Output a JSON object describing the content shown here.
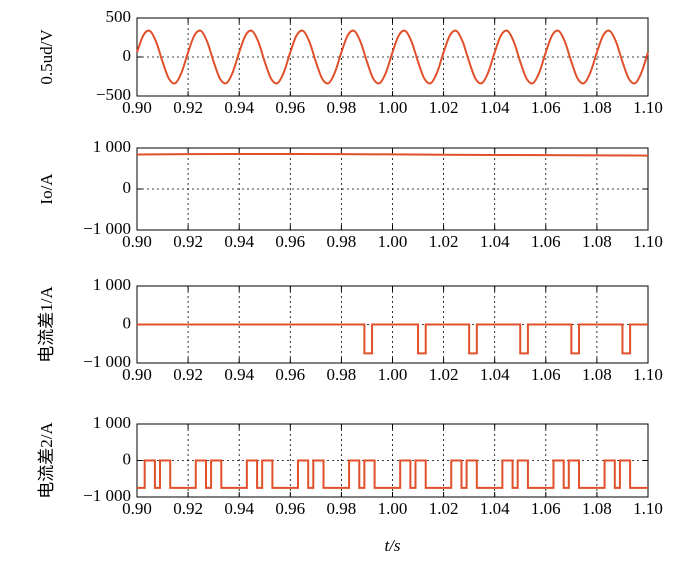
{
  "chart_data": [
    {
      "type": "line",
      "ylabel": "0.5ud/V",
      "color": "#e0502a",
      "grid": true,
      "xlim": [
        0.9,
        1.1
      ],
      "ylim": [
        -500,
        500
      ],
      "xticks": [
        {
          "value": 0.9,
          "label": "0.90"
        },
        {
          "value": 0.92,
          "label": "0.92"
        },
        {
          "value": 0.94,
          "label": "0.94"
        },
        {
          "value": 0.96,
          "label": "0.96"
        },
        {
          "value": 0.98,
          "label": "0.98"
        },
        {
          "value": 1,
          "label": "1.00"
        },
        {
          "value": 1.02,
          "label": "1.02"
        },
        {
          "value": 1.04,
          "label": "1.04"
        },
        {
          "value": 1.06,
          "label": "1.06"
        },
        {
          "value": 1.08,
          "label": "1.08"
        },
        {
          "value": 1.1,
          "label": "1.10"
        }
      ],
      "yticks": [
        500,
        0,
        {
          "value": -500,
          "label": "−500"
        }
      ],
      "x": [
        0.9,
        0.9025,
        0.905,
        0.9075,
        0.91,
        0.9125,
        0.915,
        0.9175,
        0.92,
        0.9225,
        0.925,
        0.9275,
        0.93,
        0.9325,
        0.935,
        0.9375,
        0.94,
        0.9425,
        0.945,
        0.9475,
        0.95,
        0.9525,
        0.955,
        0.9575,
        0.96,
        0.9625,
        0.965,
        0.9675,
        0.97,
        0.9725,
        0.975,
        0.9775,
        0.98,
        0.9825,
        0.985,
        0.9875,
        0.99,
        0.9925,
        0.995,
        0.9975,
        1.0,
        1.0025,
        1.005,
        1.0075,
        1.01,
        1.0125,
        1.015,
        1.0175,
        1.02,
        1.0225,
        1.025,
        1.0275,
        1.03,
        1.0325,
        1.035,
        1.0375,
        1.04,
        1.0425,
        1.045,
        1.0475,
        1.05,
        1.0525,
        1.055,
        1.0575,
        1.06,
        1.0625,
        1.065,
        1.0675,
        1.07,
        1.0725,
        1.075,
        1.0775,
        1.08,
        1.0825,
        1.085,
        1.0875,
        1.09,
        1.0925,
        1.095,
        1.0975,
        1.1
      ],
      "values": [
        61,
        279,
        335,
        194,
        -61,
        -279,
        -335,
        -194,
        61,
        279,
        335,
        194,
        -61,
        -279,
        -335,
        -194,
        61,
        279,
        335,
        194,
        -61,
        -279,
        -335,
        -194,
        61,
        279,
        335,
        194,
        -61,
        -279,
        -335,
        -194,
        61,
        279,
        335,
        194,
        -61,
        -279,
        -335,
        -194,
        61,
        279,
        335,
        194,
        -61,
        -279,
        -335,
        -194,
        61,
        279,
        335,
        194,
        -61,
        -279,
        -335,
        -194,
        61,
        279,
        335,
        194,
        -61,
        -279,
        -335,
        -194,
        61,
        279,
        335,
        194,
        -61,
        -279,
        -335,
        -194,
        61,
        279,
        335,
        194,
        -61,
        -279,
        -335,
        -194,
        61
      ]
    },
    {
      "type": "line",
      "ylabel": "Io/A",
      "color": "#e0502a",
      "grid": true,
      "xlim": [
        0.9,
        1.1
      ],
      "ylim": [
        -1000,
        1000
      ],
      "xticks": [
        {
          "value": 0.9,
          "label": "0.90"
        },
        {
          "value": 0.92,
          "label": "0.92"
        },
        {
          "value": 0.94,
          "label": "0.94"
        },
        {
          "value": 0.96,
          "label": "0.96"
        },
        {
          "value": 0.98,
          "label": "0.98"
        },
        {
          "value": 1,
          "label": "1.00"
        },
        {
          "value": 1.02,
          "label": "1.02"
        },
        {
          "value": 1.04,
          "label": "1.04"
        },
        {
          "value": 1.06,
          "label": "1.06"
        },
        {
          "value": 1.08,
          "label": "1.08"
        },
        {
          "value": 1.1,
          "label": "1.10"
        }
      ],
      "yticks": [
        {
          "value": 1000,
          "label": "1 000"
        },
        0,
        {
          "value": -1000,
          "label": "−1 000"
        }
      ],
      "x": [
        0.9,
        0.92,
        0.94,
        0.96,
        0.98,
        1.0,
        1.02,
        1.04,
        1.06,
        1.08,
        1.1
      ],
      "values": [
        840,
        850,
        855,
        855,
        850,
        845,
        835,
        830,
        825,
        820,
        815
      ]
    },
    {
      "type": "line",
      "ylabel": "电流差1/A",
      "color": "#e0502a",
      "grid": true,
      "xlim": [
        0.9,
        1.1
      ],
      "ylim": [
        -1000,
        1000
      ],
      "xticks": [
        {
          "value": 0.9,
          "label": "0.90"
        },
        {
          "value": 0.92,
          "label": "0.92"
        },
        {
          "value": 0.94,
          "label": "0.94"
        },
        {
          "value": 0.96,
          "label": "0.96"
        },
        {
          "value": 0.98,
          "label": "0.98"
        },
        {
          "value": 1,
          "label": "1.00"
        },
        {
          "value": 1.02,
          "label": "1.02"
        },
        {
          "value": 1.04,
          "label": "1.04"
        },
        {
          "value": 1.06,
          "label": "1.06"
        },
        {
          "value": 1.08,
          "label": "1.08"
        },
        {
          "value": 1.1,
          "label": "1.10"
        }
      ],
      "yticks": [
        {
          "value": 1000,
          "label": "1 000"
        },
        0,
        {
          "value": -1000,
          "label": "−1 000"
        }
      ],
      "x": [
        0.9,
        0.989,
        0.989,
        0.992,
        0.992,
        1.01,
        1.01,
        1.013,
        1.013,
        1.03,
        1.03,
        1.033,
        1.033,
        1.05,
        1.05,
        1.053,
        1.053,
        1.07,
        1.07,
        1.073,
        1.073,
        1.09,
        1.09,
        1.093,
        1.093,
        1.1
      ],
      "values": [
        0,
        0,
        -750,
        -750,
        0,
        0,
        -750,
        -750,
        0,
        0,
        -750,
        -750,
        0,
        0,
        -750,
        -750,
        0,
        0,
        -750,
        -750,
        0,
        0,
        -750,
        -750,
        0,
        0
      ]
    },
    {
      "type": "line",
      "ylabel": "电流差2/A",
      "xlabel": "t/s",
      "color": "#e0502a",
      "grid": true,
      "xlim": [
        0.9,
        1.1
      ],
      "ylim": [
        -1000,
        1000
      ],
      "xticks": [
        {
          "value": 0.9,
          "label": "0.90"
        },
        {
          "value": 0.92,
          "label": "0.92"
        },
        {
          "value": 0.94,
          "label": "0.94"
        },
        {
          "value": 0.96,
          "label": "0.96"
        },
        {
          "value": 0.98,
          "label": "0.98"
        },
        {
          "value": 1,
          "label": "1.00"
        },
        {
          "value": 1.02,
          "label": "1.02"
        },
        {
          "value": 1.04,
          "label": "1.04"
        },
        {
          "value": 1.06,
          "label": "1.06"
        },
        {
          "value": 1.08,
          "label": "1.08"
        },
        {
          "value": 1.1,
          "label": "1.10"
        }
      ],
      "yticks": [
        {
          "value": 1000,
          "label": "1 000"
        },
        0,
        {
          "value": -1000,
          "label": "−1 000"
        }
      ],
      "x": [
        0.9,
        0.903,
        0.903,
        0.907,
        0.907,
        0.909,
        0.909,
        0.913,
        0.913,
        0.923,
        0.923,
        0.927,
        0.927,
        0.929,
        0.929,
        0.933,
        0.933,
        0.943,
        0.943,
        0.947,
        0.947,
        0.949,
        0.949,
        0.953,
        0.953,
        0.963,
        0.963,
        0.967,
        0.967,
        0.969,
        0.969,
        0.973,
        0.973,
        0.983,
        0.983,
        0.987,
        0.987,
        0.989,
        0.989,
        0.993,
        0.993,
        1.003,
        1.003,
        1.007,
        1.007,
        1.009,
        1.009,
        1.013,
        1.013,
        1.023,
        1.023,
        1.027,
        1.027,
        1.029,
        1.029,
        1.033,
        1.033,
        1.043,
        1.043,
        1.047,
        1.047,
        1.049,
        1.049,
        1.053,
        1.053,
        1.063,
        1.063,
        1.067,
        1.067,
        1.069,
        1.069,
        1.073,
        1.073,
        1.083,
        1.083,
        1.087,
        1.087,
        1.089,
        1.089,
        1.093,
        1.093,
        1.1
      ],
      "values": [
        -750,
        -750,
        0,
        0,
        -750,
        -750,
        0,
        0,
        -750,
        -750,
        0,
        0,
        -750,
        -750,
        0,
        0,
        -750,
        -750,
        0,
        0,
        -750,
        -750,
        0,
        0,
        -750,
        -750,
        0,
        0,
        -750,
        -750,
        0,
        0,
        -750,
        -750,
        0,
        0,
        -750,
        -750,
        0,
        0,
        -750,
        -750,
        0,
        0,
        -750,
        -750,
        0,
        0,
        -750,
        -750,
        0,
        0,
        -750,
        -750,
        0,
        0,
        -750,
        -750,
        0,
        0,
        -750,
        -750,
        0,
        0,
        -750,
        -750,
        0,
        0,
        -750,
        -750,
        0,
        0,
        -750,
        -750,
        0,
        0,
        -750,
        -750,
        0,
        0,
        -750,
        -750
      ]
    }
  ]
}
